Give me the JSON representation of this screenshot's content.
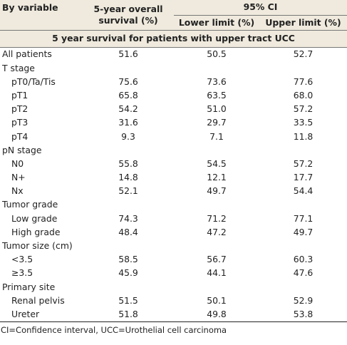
{
  "header": {
    "col0": "By variable",
    "col1_line1": "5-year overall",
    "col1_line2": "survival (%)",
    "ci": "95% CI",
    "lower": "Lower limit (%)",
    "upper": "Upper limit (%)"
  },
  "section_title": "5 year survival for patients with upper tract UCC",
  "rows": [
    {
      "label": "All patients",
      "indent": false,
      "s": "51.6",
      "l": "50.5",
      "u": "52.7"
    },
    {
      "label": "T stage",
      "indent": false,
      "s": "",
      "l": "",
      "u": ""
    },
    {
      "label": "pT0/Ta/Tis",
      "indent": true,
      "s": "75.6",
      "l": "73.6",
      "u": "77.6"
    },
    {
      "label": "pT1",
      "indent": true,
      "s": "65.8",
      "l": "63.5",
      "u": "68.0"
    },
    {
      "label": "pT2",
      "indent": true,
      "s": "54.2",
      "l": "51.0",
      "u": "57.2"
    },
    {
      "label": "pT3",
      "indent": true,
      "s": "31.6",
      "l": "29.7",
      "u": "33.5"
    },
    {
      "label": "pT4",
      "indent": true,
      "s": "9.3",
      "l": "7.1",
      "u": "11.8"
    },
    {
      "label": "pN stage",
      "indent": false,
      "s": "",
      "l": "",
      "u": ""
    },
    {
      "label": "N0",
      "indent": true,
      "s": "55.8",
      "l": "54.5",
      "u": "57.2"
    },
    {
      "label": "N+",
      "indent": true,
      "s": "14.8",
      "l": "12.1",
      "u": "17.7"
    },
    {
      "label": "Nx",
      "indent": true,
      "s": "52.1",
      "l": "49.7",
      "u": "54.4"
    },
    {
      "label": "Tumor grade",
      "indent": false,
      "s": "",
      "l": "",
      "u": ""
    },
    {
      "label": "Low grade",
      "indent": true,
      "s": "74.3",
      "l": "71.2",
      "u": "77.1"
    },
    {
      "label": "High grade",
      "indent": true,
      "s": "48.4",
      "l": "47.2",
      "u": "49.7"
    },
    {
      "label": "Tumor size (cm)",
      "indent": false,
      "s": "",
      "l": "",
      "u": ""
    },
    {
      "label": "<3.5",
      "indent": true,
      "s": "58.5",
      "l": "56.7",
      "u": "60.3"
    },
    {
      "label": "≥3.5",
      "indent": true,
      "s": "45.9",
      "l": "44.1",
      "u": "47.6"
    },
    {
      "label": "Primary site",
      "indent": false,
      "s": "",
      "l": "",
      "u": ""
    },
    {
      "label": "Renal pelvis",
      "indent": true,
      "s": "51.5",
      "l": "50.1",
      "u": "52.9"
    },
    {
      "label": "Ureter",
      "indent": true,
      "s": "51.8",
      "l": "49.8",
      "u": "53.8"
    }
  ],
  "footnote": "CI=Confidence interval, UCC=Urothelial cell carcinoma"
}
